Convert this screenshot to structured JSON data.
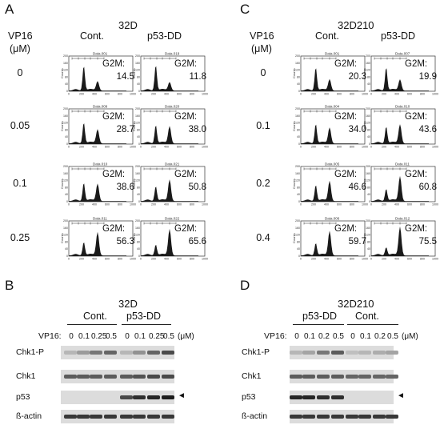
{
  "panelA": {
    "letter": "A",
    "title": "32D",
    "vp16_label": "VP16",
    "unit_label": "(μM)",
    "col1": "Cont.",
    "col2": "p53-DD",
    "doses": [
      "0",
      "0.05",
      "0.1",
      "0.25"
    ],
    "g2m_label": "G2M:",
    "cont_values": [
      "14.5",
      "28.7",
      "38.6",
      "56.3"
    ],
    "dd_values": [
      "11.8",
      "38.0",
      "50.8",
      "65.6"
    ],
    "cont_files": [
      "Data.001",
      "Data.009",
      "Data.010",
      "Data.011"
    ],
    "dd_files": [
      "Data.019",
      "Data.020",
      "Data.021",
      "Data.022"
    ]
  },
  "panelC": {
    "letter": "C",
    "title": "32D210",
    "vp16_label": "VP16",
    "unit_label": "(μM)",
    "col1": "Cont.",
    "col2": "p53-DD",
    "doses": [
      "0",
      "0.1",
      "0.2",
      "0.4"
    ],
    "g2m_label": "G2M:",
    "cont_values": [
      "20.3",
      "34.0",
      "46.6",
      "59.7"
    ],
    "dd_values": [
      "19.9",
      "43.6",
      "60.8",
      "75.5"
    ],
    "cont_files": [
      "Data.001",
      "Data.004",
      "Data.005",
      "Data.006"
    ],
    "dd_files": [
      "Data.007",
      "Data.010",
      "Data.011",
      "Data.012"
    ]
  },
  "hist_axis": {
    "xlabel": "FL2-A",
    "ylabel": "Counts",
    "xticks": [
      "0",
      "200",
      "400",
      "600",
      "800",
      "1000"
    ],
    "yticks": [
      "0",
      "40",
      "80",
      "120",
      "160",
      "200"
    ]
  },
  "panelB": {
    "letter": "B",
    "title": "32D",
    "group1": "Cont.",
    "group2": "p53-DD",
    "vp16_label": "VP16:",
    "doses": [
      "0",
      "0.1",
      "0.25",
      "0.5",
      "0",
      "0.1",
      "0.25",
      "0.5"
    ],
    "unit": "(μM)",
    "rows": [
      "Chk1-P",
      "Chk1",
      "p53",
      "ß-actin"
    ],
    "arrow": "◄"
  },
  "panelD": {
    "letter": "D",
    "title": "32D210",
    "group1": "p53-DD",
    "group2": "Cont.",
    "vp16_label": "VP16:",
    "doses": [
      "0",
      "0.1",
      "0.2",
      "0.5",
      "0",
      "0.1",
      "0.2",
      "0.5"
    ],
    "unit": "(μM)",
    "rows": [
      "Chk1-P",
      "Chk1",
      "p53",
      "ß-actin"
    ],
    "arrow": "◄"
  }
}
